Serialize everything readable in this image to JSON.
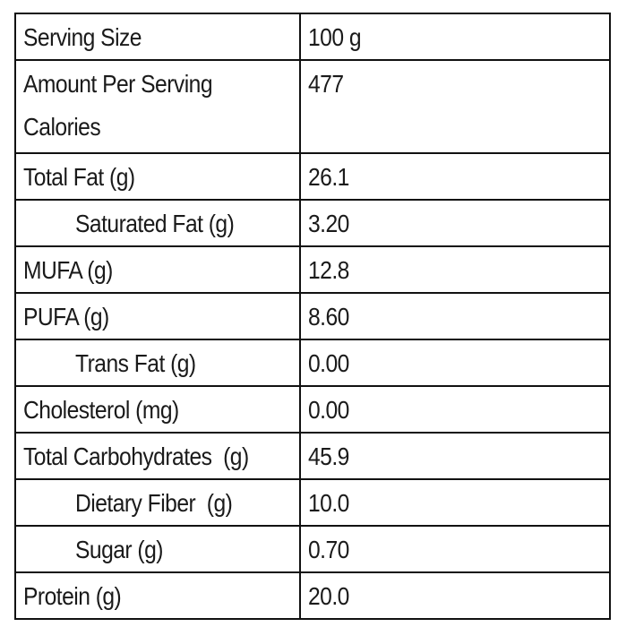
{
  "rows": [
    {
      "label": "Serving Size",
      "value": "100 g"
    },
    {
      "label_line1": "Amount Per Serving",
      "label_line2": "Calories",
      "value": "477"
    },
    {
      "label": "Total Fat (g)",
      "value": "26.1"
    },
    {
      "label": "Saturated Fat (g)",
      "value": "3.20"
    },
    {
      "label": "MUFA (g)",
      "value": "12.8"
    },
    {
      "label": "PUFA (g)",
      "value": "8.60"
    },
    {
      "label": "Trans Fat (g)",
      "value": "0.00"
    },
    {
      "label": "Cholesterol (mg)",
      "value": "0.00"
    },
    {
      "label": "Total Carbohydrates  (g)",
      "value": "45.9"
    },
    {
      "label": "Dietary Fiber  (g)",
      "value": "10.0"
    },
    {
      "label": "Sugar (g)",
      "value": "0.70"
    },
    {
      "label": "Protein (g)",
      "value": "20.0"
    }
  ]
}
